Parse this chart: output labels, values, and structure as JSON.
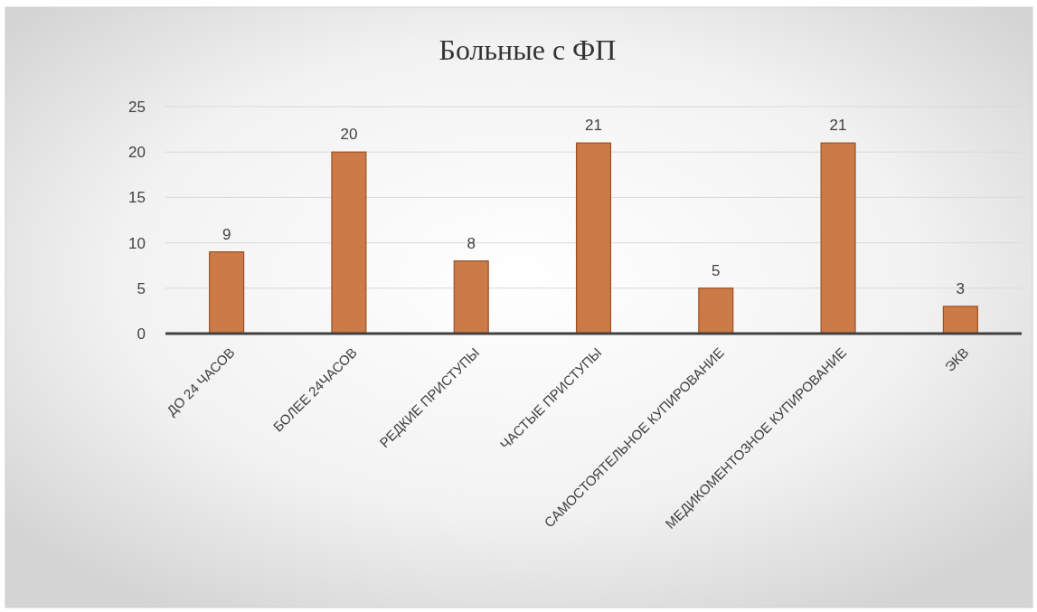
{
  "chart_data": {
    "type": "bar",
    "title": "Больные с ФП",
    "categories": [
      "ДО 24 ЧАСОВ",
      "БОЛЕЕ 24ЧАСОВ",
      "РЕДКИЕ ПРИСТУПЫ",
      "ЧАСТЫЕ ПРИСТУПЫ",
      "САМОСТОЯТЕЛЬНОЕ КУПИРОВАНИЕ",
      "МЕДИКОМЕНТОЗНОЕ КУПИРОВАНИЕ",
      "ЭКВ"
    ],
    "values": [
      9,
      20,
      8,
      21,
      5,
      21,
      3
    ],
    "color": "#cc7a48",
    "ylim": [
      0,
      25
    ],
    "yticks": [
      0,
      5,
      10,
      15,
      20,
      25
    ],
    "grid": "y",
    "data_labels": true
  }
}
